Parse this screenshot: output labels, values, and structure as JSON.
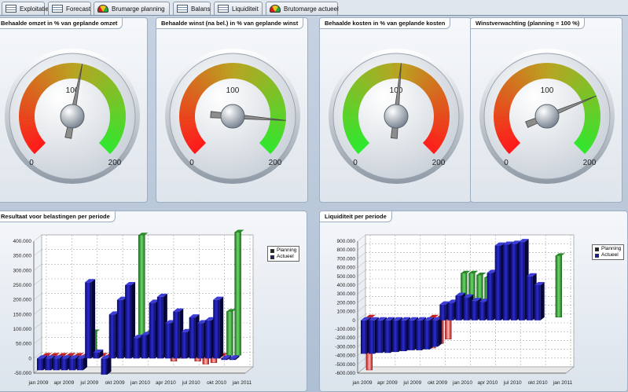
{
  "tabs": [
    {
      "label": "Exploitatie",
      "icon": "table-icon"
    },
    {
      "label": "Forecast",
      "icon": "table-icon"
    },
    {
      "label": "Brumarge planning",
      "icon": "gauge-icon"
    },
    {
      "label": "Balans",
      "icon": "table-icon"
    },
    {
      "label": "Liquiditeit",
      "icon": "table-icon"
    },
    {
      "label": "Brutomarge actueel",
      "icon": "gauge-icon"
    }
  ],
  "gauges": [
    {
      "title": "Behaalde omzet in % van geplande omzet",
      "min_label": "0",
      "mid_label": "100",
      "max_label": "200",
      "value": 108,
      "reversed": false
    },
    {
      "title": "Behaalde winst (na bel.) in % van geplande winst",
      "min_label": "0",
      "mid_label": "100",
      "max_label": "200",
      "value": 170,
      "reversed": false
    },
    {
      "title": "Behaalde kosten in % van geplande kosten",
      "min_label": "0",
      "mid_label": "100",
      "max_label": "200",
      "value": 104,
      "reversed": true
    },
    {
      "title": "Winstverwachting (planning = 100 %)",
      "min_label": "0",
      "mid_label": "100",
      "max_label": "200",
      "value": 150,
      "reversed": false
    }
  ],
  "chart_data": [
    {
      "type": "bar",
      "title": "Resultaat voor belastingen per periode",
      "legend": [
        "Planning",
        "Actueel"
      ],
      "legend_position": "top-right",
      "x_tick_labels": [
        "jan 2009",
        "apr 2009",
        "jul 2009",
        "okt 2009",
        "jan 2010",
        "apr 2010",
        "jul 2010",
        "okt 2010",
        "jan 2011"
      ],
      "y_tick_labels": [
        "-50.000",
        "0",
        "50.000",
        "100.000",
        "150.000",
        "200.000",
        "250.000",
        "300.000",
        "350.000",
        "400.000"
      ],
      "ylim": [
        -50000,
        400000
      ],
      "series": [
        {
          "name": "Planning",
          "values": [
            -5000,
            -5000,
            -5000,
            -5000,
            -5000,
            -5000,
            80000,
            -5000,
            -5000,
            10000,
            15000,
            20000,
            410000,
            80000,
            120000,
            -5000,
            -20000,
            -10000,
            -5000,
            -20000,
            -30000,
            -25000,
            -10000,
            150000,
            420000,
            0
          ]
        },
        {
          "name": "Actueel",
          "values": [
            -40000,
            -40000,
            -40000,
            -40000,
            -40000,
            -40000,
            260000,
            20000,
            -55000,
            150000,
            200000,
            250000,
            70000,
            80000,
            190000,
            210000,
            120000,
            160000,
            90000,
            140000,
            120000,
            130000,
            200000,
            -5000,
            -5000,
            0
          ]
        }
      ]
    },
    {
      "type": "bar",
      "title": "Liquiditeit per periode",
      "legend": [
        "Planning",
        "Actueel"
      ],
      "legend_position": "top-right",
      "x_tick_labels": [
        "jan 2009",
        "apr 2009",
        "jul 2009",
        "okt 2009",
        "jan 2010",
        "apr 2010",
        "jul 2010",
        "okt 2010",
        "jan 2011"
      ],
      "y_tick_labels": [
        "-600.000",
        "-500.000",
        "-400.000",
        "-300.000",
        "-200.000",
        "-100.000",
        "0",
        "100.000",
        "200.000",
        "300.000",
        "400.000",
        "500.000",
        "600.000",
        "700.000",
        "800.000",
        "900.000"
      ],
      "ylim": [
        -600000,
        900000
      ],
      "series": [
        {
          "name": "Planning",
          "values": [
            -600000,
            0,
            0,
            0,
            0,
            0,
            0,
            0,
            -350000,
            -300000,
            -250000,
            150000,
            500000,
            500000,
            480000,
            450000,
            400000,
            350000,
            0,
            0,
            0,
            0,
            0,
            0,
            700000,
            0
          ]
        },
        {
          "name": "Actueel",
          "values": [
            -380000,
            -380000,
            -370000,
            -370000,
            -360000,
            -350000,
            -340000,
            -340000,
            -330000,
            -300000,
            180000,
            200000,
            280000,
            260000,
            220000,
            210000,
            540000,
            850000,
            860000,
            870000,
            890000,
            500000,
            400000,
            0,
            0,
            0
          ]
        }
      ]
    }
  ]
}
